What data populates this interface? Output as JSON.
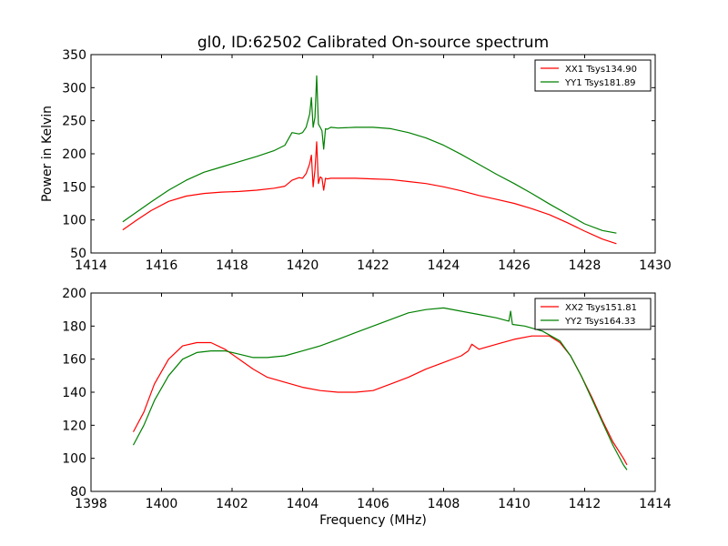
{
  "figure": {
    "title": "gl0, ID:62502 Calibrated On-source spectrum",
    "background": "#ffffff"
  },
  "chart_data": [
    {
      "type": "line",
      "title": "gl0, ID:62502 Calibrated On-source spectrum",
      "xlabel": "",
      "ylabel": "Power in Kelvin",
      "xlim": [
        1414,
        1430
      ],
      "ylim": [
        50,
        350
      ],
      "xticks": [
        1414,
        1416,
        1418,
        1420,
        1422,
        1424,
        1426,
        1428,
        1430
      ],
      "yticks": [
        50,
        100,
        150,
        200,
        250,
        300,
        350
      ],
      "grid": false,
      "legend_position": "top-right",
      "series": [
        {
          "name": "XX1 Tsys134.90",
          "color": "#ff0000",
          "x": [
            1414.9,
            1415.3,
            1415.7,
            1416.2,
            1416.7,
            1417.2,
            1417.7,
            1418.2,
            1418.7,
            1419.2,
            1419.5,
            1419.7,
            1419.9,
            1420.0,
            1420.1,
            1420.2,
            1420.25,
            1420.3,
            1420.35,
            1420.4,
            1420.45,
            1420.5,
            1420.55,
            1420.6,
            1420.65,
            1420.7,
            1420.8,
            1421.0,
            1421.5,
            1422.0,
            1422.5,
            1423.0,
            1423.5,
            1424.0,
            1424.5,
            1425.0,
            1425.5,
            1426.0,
            1426.5,
            1427.0,
            1427.5,
            1428.0,
            1428.5,
            1428.9
          ],
          "y": [
            85,
            100,
            114,
            128,
            136,
            140,
            142,
            143,
            145,
            148,
            151,
            160,
            164,
            163,
            170,
            185,
            198,
            150,
            175,
            218,
            155,
            165,
            163,
            145,
            163,
            162,
            163,
            163,
            163,
            162,
            161,
            158,
            155,
            150,
            144,
            137,
            131,
            125,
            117,
            108,
            96,
            83,
            71,
            64
          ]
        },
        {
          "name": "YY1 Tsys181.89",
          "color": "#008000",
          "x": [
            1414.9,
            1415.3,
            1415.7,
            1416.2,
            1416.7,
            1417.2,
            1417.7,
            1418.2,
            1418.7,
            1419.2,
            1419.5,
            1419.7,
            1419.9,
            1420.0,
            1420.1,
            1420.2,
            1420.25,
            1420.3,
            1420.35,
            1420.4,
            1420.45,
            1420.5,
            1420.55,
            1420.6,
            1420.65,
            1420.7,
            1420.8,
            1421.0,
            1421.5,
            1422.0,
            1422.5,
            1423.0,
            1423.5,
            1424.0,
            1424.5,
            1425.0,
            1425.5,
            1426.0,
            1426.5,
            1427.0,
            1427.5,
            1428.0,
            1428.5,
            1428.9
          ],
          "y": [
            97,
            112,
            127,
            145,
            160,
            172,
            180,
            188,
            196,
            205,
            213,
            232,
            230,
            232,
            240,
            260,
            285,
            240,
            255,
            318,
            245,
            240,
            235,
            207,
            238,
            237,
            240,
            239,
            240,
            240,
            238,
            232,
            224,
            213,
            199,
            184,
            169,
            155,
            140,
            124,
            109,
            94,
            84,
            80
          ]
        }
      ]
    },
    {
      "type": "line",
      "title": "",
      "xlabel": "Frequency (MHz)",
      "ylabel": "",
      "xlim": [
        1398,
        1414
      ],
      "ylim": [
        80,
        200
      ],
      "xticks": [
        1398,
        1400,
        1402,
        1404,
        1406,
        1408,
        1410,
        1412,
        1414
      ],
      "yticks": [
        80,
        100,
        120,
        140,
        160,
        180,
        200
      ],
      "grid": false,
      "legend_position": "top-right",
      "series": [
        {
          "name": "XX2 Tsys151.81",
          "color": "#ff0000",
          "x": [
            1399.2,
            1399.5,
            1399.8,
            1400.2,
            1400.6,
            1401.0,
            1401.4,
            1401.8,
            1402.2,
            1402.6,
            1403.0,
            1403.5,
            1404.0,
            1404.5,
            1405.0,
            1405.5,
            1406.0,
            1406.5,
            1407.0,
            1407.5,
            1408.0,
            1408.5,
            1408.7,
            1408.8,
            1409.0,
            1409.5,
            1410.0,
            1410.5,
            1411.0,
            1411.3,
            1411.6,
            1411.9,
            1412.2,
            1412.5,
            1412.8,
            1413.1,
            1413.2
          ],
          "y": [
            116,
            128,
            145,
            160,
            168,
            170,
            170,
            166,
            160,
            154,
            149,
            146,
            143,
            141,
            140,
            140,
            141,
            145,
            149,
            154,
            158,
            162,
            165,
            169,
            166,
            169,
            172,
            174,
            174,
            170,
            162,
            150,
            137,
            123,
            110,
            100,
            96
          ]
        },
        {
          "name": "YY2 Tsys164.33",
          "color": "#008000",
          "x": [
            1399.2,
            1399.5,
            1399.8,
            1400.2,
            1400.6,
            1401.0,
            1401.4,
            1401.8,
            1402.2,
            1402.6,
            1403.0,
            1403.5,
            1404.0,
            1404.5,
            1405.0,
            1405.5,
            1406.0,
            1406.5,
            1407.0,
            1407.5,
            1408.0,
            1408.5,
            1409.0,
            1409.5,
            1409.85,
            1409.9,
            1409.95,
            1410.3,
            1410.8,
            1411.3,
            1411.6,
            1411.9,
            1412.2,
            1412.5,
            1412.8,
            1413.1,
            1413.2
          ],
          "y": [
            108,
            120,
            135,
            150,
            160,
            164,
            165,
            165,
            163,
            161,
            161,
            162,
            165,
            168,
            172,
            176,
            180,
            184,
            188,
            190,
            191,
            189,
            187,
            185,
            183,
            189,
            181,
            180,
            177,
            171,
            162,
            150,
            136,
            122,
            108,
            96,
            93
          ]
        }
      ]
    }
  ]
}
